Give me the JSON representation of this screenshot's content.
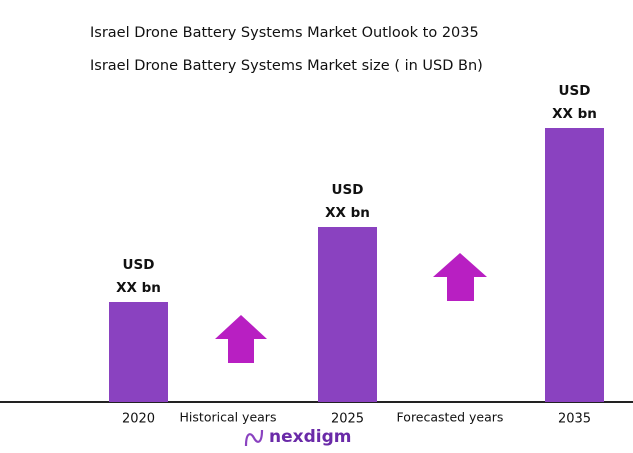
{
  "chart_data": {
    "type": "bar",
    "title": "Israel Drone Battery Systems Market Outlook to 2035",
    "subtitle": "Israel Drone Battery Systems Market size ( in USD Bn)",
    "categories": [
      "2020",
      "2025",
      "2035"
    ],
    "values": [
      100,
      175,
      274
    ],
    "value_labels": [
      [
        "USD",
        "XX bn"
      ],
      [
        "USD",
        "XX bn"
      ],
      [
        "USD",
        "XX bn"
      ]
    ],
    "color": "#8a42c0",
    "ylim": [
      0,
      300
    ],
    "annotations": [
      "Historical years",
      "Forecasted years"
    ],
    "logo": "nexdigm"
  }
}
